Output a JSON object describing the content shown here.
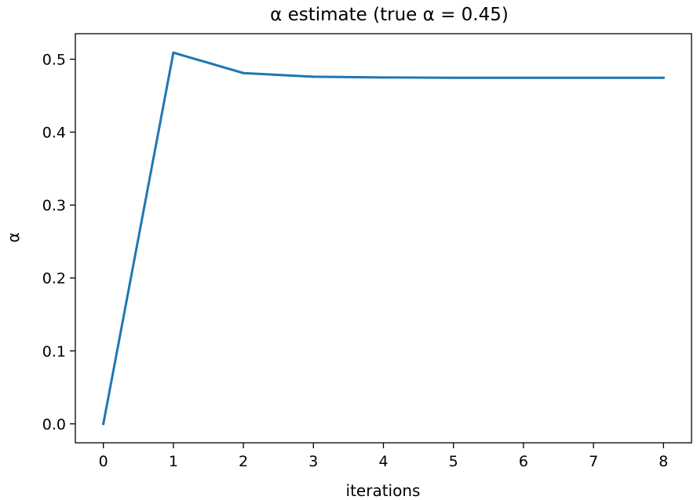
{
  "chart_data": {
    "type": "line",
    "title": "α estimate (true α = 0.45)",
    "xlabel": "iterations",
    "ylabel": "α",
    "xlim": [
      -0.4,
      8.4
    ],
    "ylim": [
      -0.026,
      0.535
    ],
    "xticks": [
      0,
      1,
      2,
      3,
      4,
      5,
      6,
      7,
      8
    ],
    "xtick_labels": [
      "0",
      "1",
      "2",
      "3",
      "4",
      "5",
      "6",
      "7",
      "8"
    ],
    "yticks": [
      0.0,
      0.1,
      0.2,
      0.3,
      0.4,
      0.5
    ],
    "ytick_labels": [
      "0.0",
      "0.1",
      "0.2",
      "0.3",
      "0.4",
      "0.5"
    ],
    "grid": false,
    "series": [
      {
        "color": "#1f77b4",
        "x": [
          0,
          1,
          2,
          3,
          4,
          5,
          6,
          7,
          8
        ],
        "y": [
          0.0,
          0.509,
          0.481,
          0.476,
          0.475,
          0.4745,
          0.4745,
          0.4745,
          0.4745
        ]
      }
    ]
  }
}
